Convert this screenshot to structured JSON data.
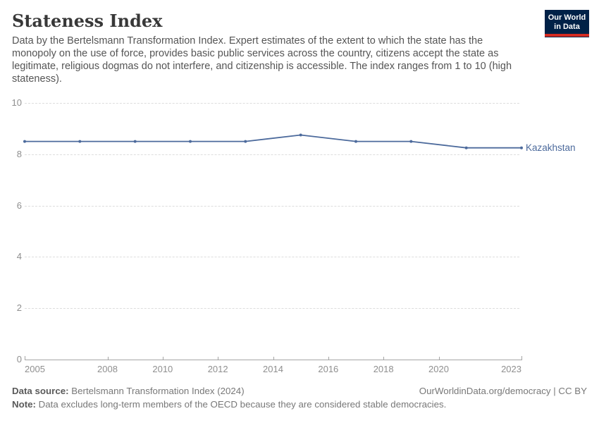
{
  "header": {
    "title": "Stateness Index",
    "subtitle": "Data by the Bertelsmann Transformation Index. Expert estimates of the extent to which the state has the monopoly on the use of force, provides basic public services across the country, citizens accept the state as legitimate, religious dogmas do not interfere, and citizenship is accessible. The index ranges from 1 to 10 (high stateness).",
    "logo_line1": "Our World",
    "logo_line2": "in Data"
  },
  "chart_data": {
    "type": "line",
    "title": "Stateness Index",
    "x": [
      2005,
      2007,
      2009,
      2011,
      2013,
      2015,
      2017,
      2019,
      2021,
      2023
    ],
    "series": [
      {
        "name": "Kazakhstan",
        "color": "#4C6A9C",
        "values": [
          8.5,
          8.5,
          8.5,
          8.5,
          8.5,
          8.75,
          8.5,
          8.5,
          8.25,
          8.25
        ]
      }
    ],
    "xlim": [
      2005,
      2023
    ],
    "ylim": [
      0,
      10
    ],
    "y_ticks": [
      0,
      2,
      4,
      6,
      8,
      10
    ],
    "x_tick_labels": [
      2005,
      2008,
      2010,
      2012,
      2014,
      2016,
      2018,
      2020,
      2023
    ],
    "grid": "horizontal-dashed",
    "legend": "label-at-line-end"
  },
  "colors": {
    "line": "#4C6A9C",
    "logo_bg": "#002147",
    "logo_stripe": "#D42B21",
    "grid": "#DDDDDD",
    "axis": "#A5A5A5",
    "tick_text": "#8F8F8F"
  },
  "footer": {
    "source_label": "Data source:",
    "source_value": " Bertelsmann Transformation Index (2024)",
    "attribution": "OurWorldinData.org/democracy | CC BY",
    "note_label": "Note:",
    "note_value": " Data excludes long-term members of the OECD because they are considered stable democracies."
  }
}
